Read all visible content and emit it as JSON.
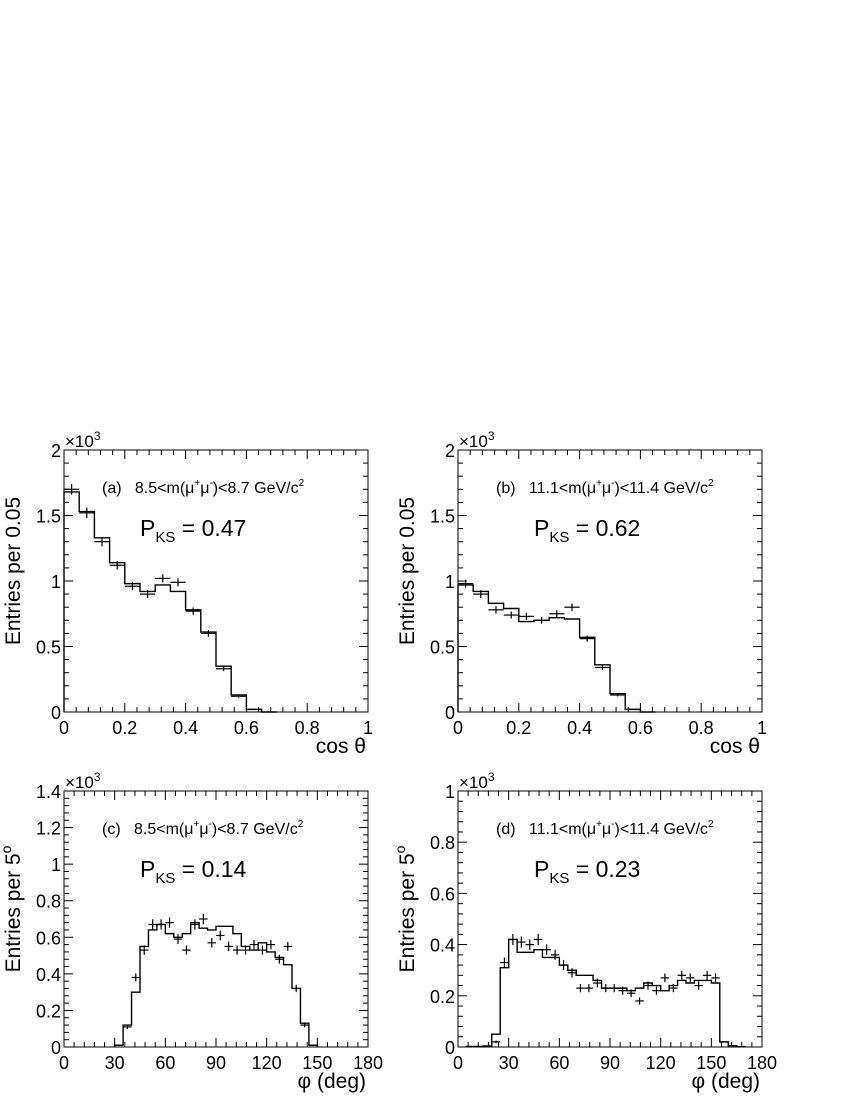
{
  "chart_data": [
    {
      "id": "a",
      "type": "histogram",
      "panel_label": "(a)",
      "title_prefix": "8.5<m(",
      "title_mu": "μ",
      "title_plus": "+",
      "title_minus": "-",
      "title_suffix": ")<8.7 GeV/c",
      "title_sup": "2",
      "pks_main": "P",
      "pks_sub": "KS",
      "pks_value": "=  0.47",
      "xlabel": "cos θ",
      "ylabel": "Entries per 0.05",
      "ylabel_sup": "",
      "multiplier_base": "×10",
      "multiplier_exp": "3",
      "xlim": [
        0,
        1
      ],
      "ylim": [
        0,
        2
      ],
      "xticks": [
        0,
        0.2,
        0.4,
        0.6,
        0.8,
        1
      ],
      "xtick_labels": [
        "0",
        "0.2",
        "0.4",
        "0.6",
        "0.8",
        "1"
      ],
      "yticks": [
        0,
        0.5,
        1,
        1.5,
        2
      ],
      "ytick_labels": [
        "0",
        "0.5",
        "1",
        "1.5",
        "2"
      ],
      "bin_width": 0.05,
      "hist_edges": [
        0,
        0.05,
        0.1,
        0.15,
        0.2,
        0.25,
        0.3,
        0.35,
        0.4,
        0.45,
        0.5,
        0.55,
        0.6,
        0.65,
        0.7
      ],
      "hist_values": [
        1.68,
        1.53,
        1.33,
        1.14,
        0.98,
        0.92,
        0.97,
        0.92,
        0.78,
        0.61,
        0.35,
        0.13,
        0.02,
        0
      ],
      "points_x": [
        0.025,
        0.075,
        0.125,
        0.175,
        0.225,
        0.275,
        0.325,
        0.375,
        0.425,
        0.475,
        0.525,
        0.575,
        0.625
      ],
      "points_y": [
        1.7,
        1.52,
        1.3,
        1.12,
        0.96,
        0.9,
        1.02,
        0.99,
        0.77,
        0.6,
        0.33,
        0.12,
        0.02
      ],
      "points_err": [
        0.04,
        0.04,
        0.035,
        0.033,
        0.031,
        0.03,
        0.032,
        0.031,
        0.028,
        0.025,
        0.018,
        0.012,
        0.005
      ]
    },
    {
      "id": "b",
      "type": "histogram",
      "panel_label": "(b)",
      "title_prefix": "11.1<m(",
      "title_mu": "μ",
      "title_plus": "+",
      "title_minus": "-",
      "title_suffix": ")<11.4 GeV/c",
      "title_sup": "2",
      "pks_main": "P",
      "pks_sub": "KS",
      "pks_value": "=  0.62",
      "xlabel": "cos θ",
      "ylabel": "Entries per 0.05",
      "ylabel_sup": "",
      "multiplier_base": "×10",
      "multiplier_exp": "3",
      "xlim": [
        0,
        1
      ],
      "ylim": [
        0,
        2
      ],
      "xticks": [
        0,
        0.2,
        0.4,
        0.6,
        0.8,
        1
      ],
      "xtick_labels": [
        "0",
        "0.2",
        "0.4",
        "0.6",
        "0.8",
        "1"
      ],
      "yticks": [
        0,
        0.5,
        1,
        1.5,
        2
      ],
      "ytick_labels": [
        "0",
        "0.5",
        "1",
        "1.5",
        "2"
      ],
      "bin_width": 0.05,
      "hist_edges": [
        0,
        0.05,
        0.1,
        0.15,
        0.2,
        0.25,
        0.3,
        0.35,
        0.4,
        0.45,
        0.5,
        0.55,
        0.6,
        0.65
      ],
      "hist_values": [
        0.97,
        0.92,
        0.83,
        0.79,
        0.69,
        0.7,
        0.72,
        0.71,
        0.57,
        0.36,
        0.14,
        0.02,
        0
      ],
      "points_x": [
        0.025,
        0.075,
        0.125,
        0.175,
        0.225,
        0.275,
        0.325,
        0.375,
        0.425,
        0.475,
        0.525,
        0.575
      ],
      "points_y": [
        0.98,
        0.9,
        0.78,
        0.74,
        0.73,
        0.7,
        0.75,
        0.8,
        0.56,
        0.34,
        0.13,
        0.02
      ],
      "points_err": [
        0.03,
        0.03,
        0.028,
        0.027,
        0.027,
        0.026,
        0.027,
        0.028,
        0.023,
        0.018,
        0.011,
        0.004
      ]
    },
    {
      "id": "c",
      "type": "histogram",
      "panel_label": "(c)",
      "title_prefix": "8.5<m(",
      "title_mu": "μ",
      "title_plus": "+",
      "title_minus": "-",
      "title_suffix": ")<8.7 GeV/c",
      "title_sup": "2",
      "pks_main": "P",
      "pks_sub": "KS",
      "pks_value": "=  0.14",
      "xlabel": "φ (deg)",
      "ylabel": "Entries per 5",
      "ylabel_sup": "o",
      "multiplier_base": "×10",
      "multiplier_exp": "3",
      "xlim": [
        0,
        180
      ],
      "ylim": [
        0,
        1.4
      ],
      "xticks": [
        0,
        30,
        60,
        90,
        120,
        150,
        180
      ],
      "xtick_labels": [
        "0",
        "30",
        "60",
        "90",
        "120",
        "150",
        "180"
      ],
      "yticks": [
        0,
        0.2,
        0.4,
        0.6,
        0.8,
        1,
        1.2,
        1.4
      ],
      "ytick_labels": [
        "0",
        "0.2",
        "0.4",
        "0.6",
        "0.8",
        "1",
        "1.2",
        "1.4"
      ],
      "bin_width": 5,
      "hist_edges": [
        30,
        35,
        40,
        45,
        50,
        55,
        60,
        65,
        70,
        75,
        80,
        85,
        90,
        95,
        100,
        105,
        110,
        115,
        120,
        125,
        130,
        135,
        140,
        145,
        150
      ],
      "hist_values": [
        0.01,
        0.12,
        0.3,
        0.55,
        0.64,
        0.67,
        0.62,
        0.6,
        0.62,
        0.68,
        0.65,
        0.64,
        0.66,
        0.66,
        0.62,
        0.55,
        0.53,
        0.57,
        0.52,
        0.49,
        0.45,
        0.32,
        0.13,
        0.01
      ],
      "points_x": [
        32.5,
        37.5,
        42.5,
        47.5,
        52.5,
        57.5,
        62.5,
        67.5,
        72.5,
        77.5,
        82.5,
        87.5,
        92.5,
        97.5,
        102.5,
        107.5,
        112.5,
        117.5,
        122.5,
        127.5,
        132.5,
        137.5,
        142.5,
        147.5
      ],
      "points_y": [
        0.01,
        0.11,
        0.38,
        0.53,
        0.67,
        0.67,
        0.68,
        0.59,
        0.53,
        0.67,
        0.7,
        0.57,
        0.61,
        0.55,
        0.53,
        0.53,
        0.56,
        0.53,
        0.56,
        0.48,
        0.55,
        0.32,
        0.12,
        0.01
      ],
      "points_err": [
        0.004,
        0.012,
        0.022,
        0.026,
        0.028,
        0.028,
        0.028,
        0.027,
        0.025,
        0.028,
        0.029,
        0.026,
        0.027,
        0.026,
        0.025,
        0.025,
        0.026,
        0.025,
        0.026,
        0.024,
        0.025,
        0.02,
        0.012,
        0.004
      ]
    },
    {
      "id": "d",
      "type": "histogram",
      "panel_label": "(d)",
      "title_prefix": "11.1<m(",
      "title_mu": "μ",
      "title_plus": "+",
      "title_minus": "-",
      "title_suffix": ")<11.4 GeV/c",
      "title_sup": "2",
      "pks_main": "P",
      "pks_sub": "KS",
      "pks_value": "=  0.23",
      "xlabel": "φ (deg)",
      "ylabel": "Entries per 5",
      "ylabel_sup": "o",
      "multiplier_base": "×10",
      "multiplier_exp": "3",
      "xlim": [
        0,
        180
      ],
      "ylim": [
        0,
        1
      ],
      "xticks": [
        0,
        30,
        60,
        90,
        120,
        150,
        180
      ],
      "xtick_labels": [
        "0",
        "30",
        "60",
        "90",
        "120",
        "150",
        "180"
      ],
      "yticks": [
        0,
        0.2,
        0.4,
        0.6,
        0.8,
        1
      ],
      "ytick_labels": [
        "0",
        "0.2",
        "0.4",
        "0.6",
        "0.8",
        "1"
      ],
      "bin_width": 5,
      "hist_edges": [
        5,
        10,
        15,
        20,
        25,
        30,
        35,
        40,
        45,
        50,
        55,
        60,
        65,
        70,
        75,
        80,
        85,
        90,
        95,
        100,
        105,
        110,
        115,
        120,
        125,
        130,
        135,
        140,
        145,
        150,
        155,
        160,
        165,
        170
      ],
      "hist_values": [
        0.002,
        0.002,
        0.004,
        0.05,
        0.31,
        0.42,
        0.37,
        0.37,
        0.38,
        0.35,
        0.35,
        0.32,
        0.3,
        0.28,
        0.28,
        0.26,
        0.23,
        0.23,
        0.23,
        0.22,
        0.23,
        0.25,
        0.24,
        0.22,
        0.24,
        0.26,
        0.25,
        0.26,
        0.26,
        0.25,
        0.02,
        0.005,
        0.001
      ],
      "points_x": [
        22.5,
        27.5,
        32.5,
        37.5,
        42.5,
        47.5,
        52.5,
        57.5,
        62.5,
        67.5,
        72.5,
        77.5,
        82.5,
        87.5,
        92.5,
        97.5,
        102.5,
        107.5,
        112.5,
        117.5,
        122.5,
        127.5,
        132.5,
        137.5,
        142.5,
        147.5,
        152.5
      ],
      "points_y": [
        0.02,
        0.33,
        0.42,
        0.41,
        0.4,
        0.42,
        0.38,
        0.36,
        0.32,
        0.29,
        0.23,
        0.23,
        0.25,
        0.23,
        0.23,
        0.22,
        0.21,
        0.18,
        0.24,
        0.22,
        0.27,
        0.23,
        0.28,
        0.27,
        0.24,
        0.28,
        0.27
      ],
      "points_err": [
        0.005,
        0.02,
        0.022,
        0.022,
        0.021,
        0.022,
        0.021,
        0.02,
        0.019,
        0.018,
        0.016,
        0.016,
        0.017,
        0.016,
        0.016,
        0.016,
        0.015,
        0.014,
        0.016,
        0.016,
        0.017,
        0.016,
        0.017,
        0.017,
        0.016,
        0.017,
        0.017
      ]
    }
  ]
}
